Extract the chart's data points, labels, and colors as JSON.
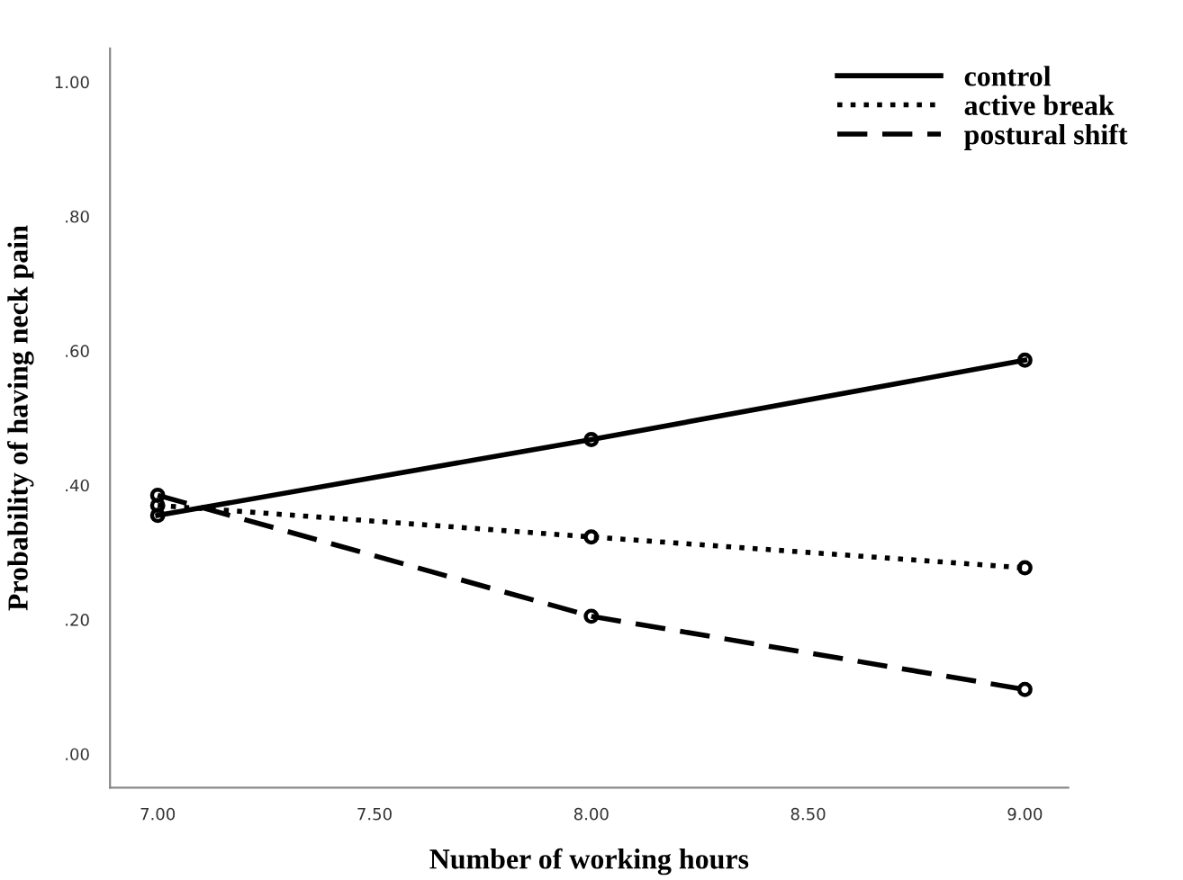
{
  "chart_data": {
    "type": "line",
    "xlabel": "Number of working hours",
    "ylabel": "Probability of having neck pain",
    "x": [
      7,
      8,
      9
    ],
    "series": [
      {
        "name": "control",
        "color": "#000000",
        "line_style": "solid",
        "values": [
          0.355,
          0.468,
          0.586
        ]
      },
      {
        "name": "active break",
        "color": "#000000",
        "line_style": "dotted",
        "values": [
          0.37,
          0.323,
          0.277
        ]
      },
      {
        "name": "postural shift",
        "color": "#000000",
        "line_style": "dashed",
        "values": [
          0.385,
          0.205,
          0.096
        ]
      }
    ],
    "marker": "circle",
    "legend": "top right",
    "grid": false,
    "xlim": [
      6.89,
      9.1
    ],
    "xticks": [
      {
        "value": 7,
        "label": "7.00"
      },
      {
        "value": 7.5,
        "label": "7.50"
      },
      {
        "value": 8,
        "label": "8.00"
      },
      {
        "value": 8.5,
        "label": "8.50"
      },
      {
        "value": 9,
        "label": "9.00"
      }
    ],
    "ylim": [
      -0.05,
      1.05
    ],
    "yticks": [
      {
        "value": 0,
        "label": ".00"
      },
      {
        "value": 0.2,
        "label": ".20"
      },
      {
        "value": 0.4,
        "label": ".40"
      },
      {
        "value": 0.6,
        "label": ".60"
      },
      {
        "value": 0.8,
        "label": ".80"
      },
      {
        "value": 1.0,
        "label": "1.00"
      }
    ]
  }
}
